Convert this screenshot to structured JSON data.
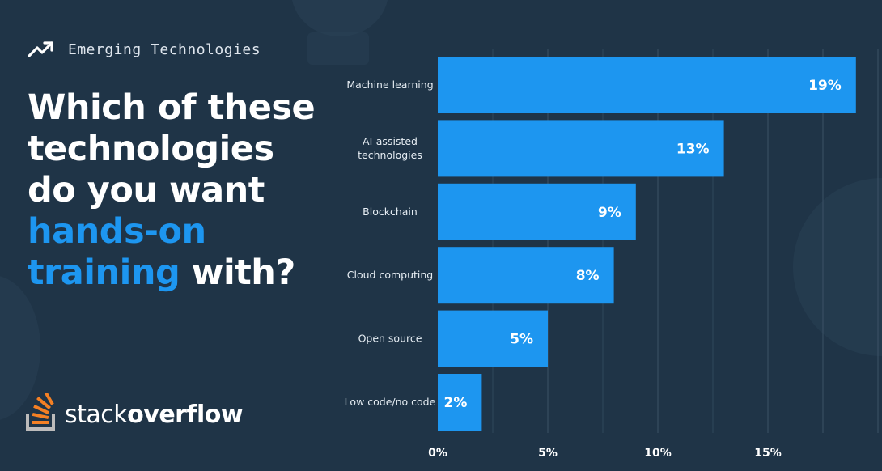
{
  "header": {
    "category": "Emerging Technologies",
    "icon": "trending-up-icon"
  },
  "question": {
    "line1": "Which of these",
    "line2": "technologies",
    "line3": "do you want",
    "line4_highlight": "hands-on",
    "line5_highlight": "training",
    "line5_rest": " with?"
  },
  "brand": {
    "name_light": "stack",
    "name_bold": "overflow",
    "logo_icon": "stackoverflow-logo-icon"
  },
  "colors": {
    "background": "#1f3447",
    "bar": "#1d96f0",
    "highlight_text": "#1d96f0",
    "logo_orange": "#f48024"
  },
  "chart_data": {
    "type": "bar",
    "orientation": "horizontal",
    "categories": [
      [
        "Machine learning"
      ],
      [
        "AI-assisted",
        "technologies"
      ],
      [
        "Blockchain"
      ],
      [
        "Cloud computing"
      ],
      [
        "Open source"
      ],
      [
        "Low code/no code"
      ]
    ],
    "values": [
      19,
      13,
      9,
      8,
      5,
      2
    ],
    "value_labels": [
      "19%",
      "13%",
      "9%",
      "8%",
      "5%",
      "2%"
    ],
    "xticks": [
      0,
      5,
      10,
      15
    ],
    "xtick_labels": [
      "0%",
      "5%",
      "10%",
      "15%"
    ],
    "grid": true
  }
}
